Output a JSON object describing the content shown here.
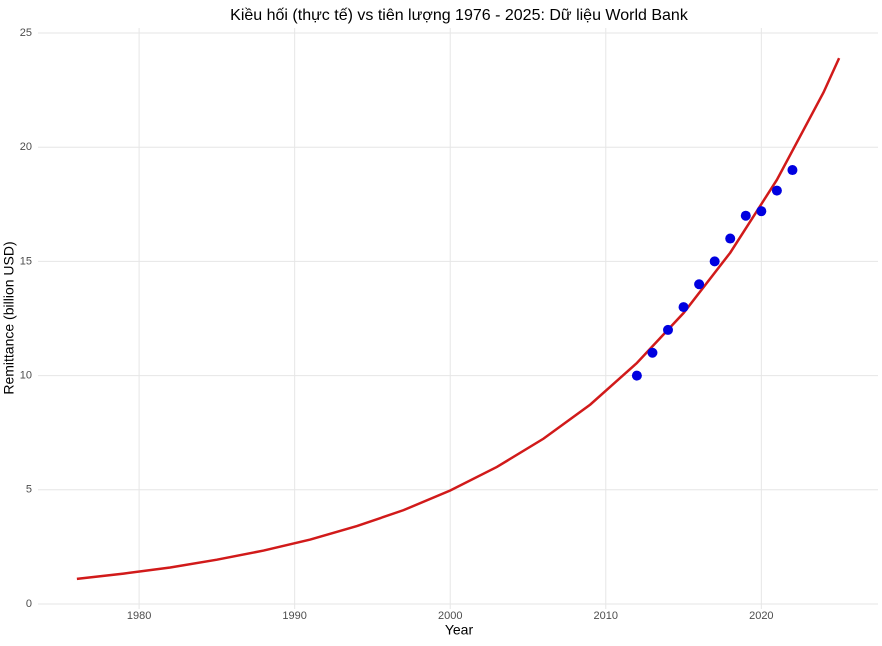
{
  "chart_data": {
    "type": "line",
    "title": "Kiều hối (thực tế) vs tiên lượng 1976 - 2025: Dữ liệu World Bank",
    "x_label": "Year",
    "y_label": "Remittance (billion USD)",
    "xlim": [
      1973.5,
      2027.5
    ],
    "xticks": [
      1980,
      1990,
      2000,
      2010,
      2020
    ],
    "ylim": [
      0,
      25
    ],
    "yticks": [
      0,
      5,
      10,
      15,
      20,
      25
    ],
    "grid": true,
    "series": [
      {
        "type": "line",
        "color": "#d11a1a",
        "x": [
          1976,
          1979,
          1982,
          1985,
          1988,
          1991,
          1994,
          1997,
          2000,
          2003,
          2006,
          2009,
          2012,
          2015,
          2018,
          2021,
          2024,
          2025
        ],
        "values": [
          1.1,
          1.33,
          1.6,
          1.94,
          2.34,
          2.82,
          3.41,
          4.11,
          4.97,
          6.0,
          7.24,
          8.73,
          10.55,
          12.74,
          15.38,
          18.57,
          22.4,
          23.9
        ]
      },
      {
        "type": "scatter",
        "color": "#0000e0",
        "x": [
          2012,
          2013,
          2014,
          2015,
          2016,
          2017,
          2018,
          2019,
          2020,
          2021,
          2022
        ],
        "values": [
          10,
          11,
          12,
          13,
          14,
          15,
          16,
          17,
          17.2,
          18.1,
          19
        ]
      }
    ]
  }
}
